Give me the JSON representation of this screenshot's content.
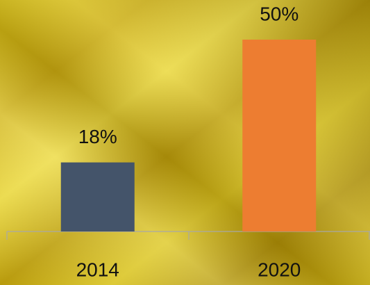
{
  "chart_data": {
    "type": "bar",
    "categories": [
      "2014",
      "2020"
    ],
    "values": [
      18,
      50
    ],
    "value_labels": [
      "18%",
      "50%"
    ],
    "colors": [
      "#44546a",
      "#ed7d31"
    ]
  }
}
